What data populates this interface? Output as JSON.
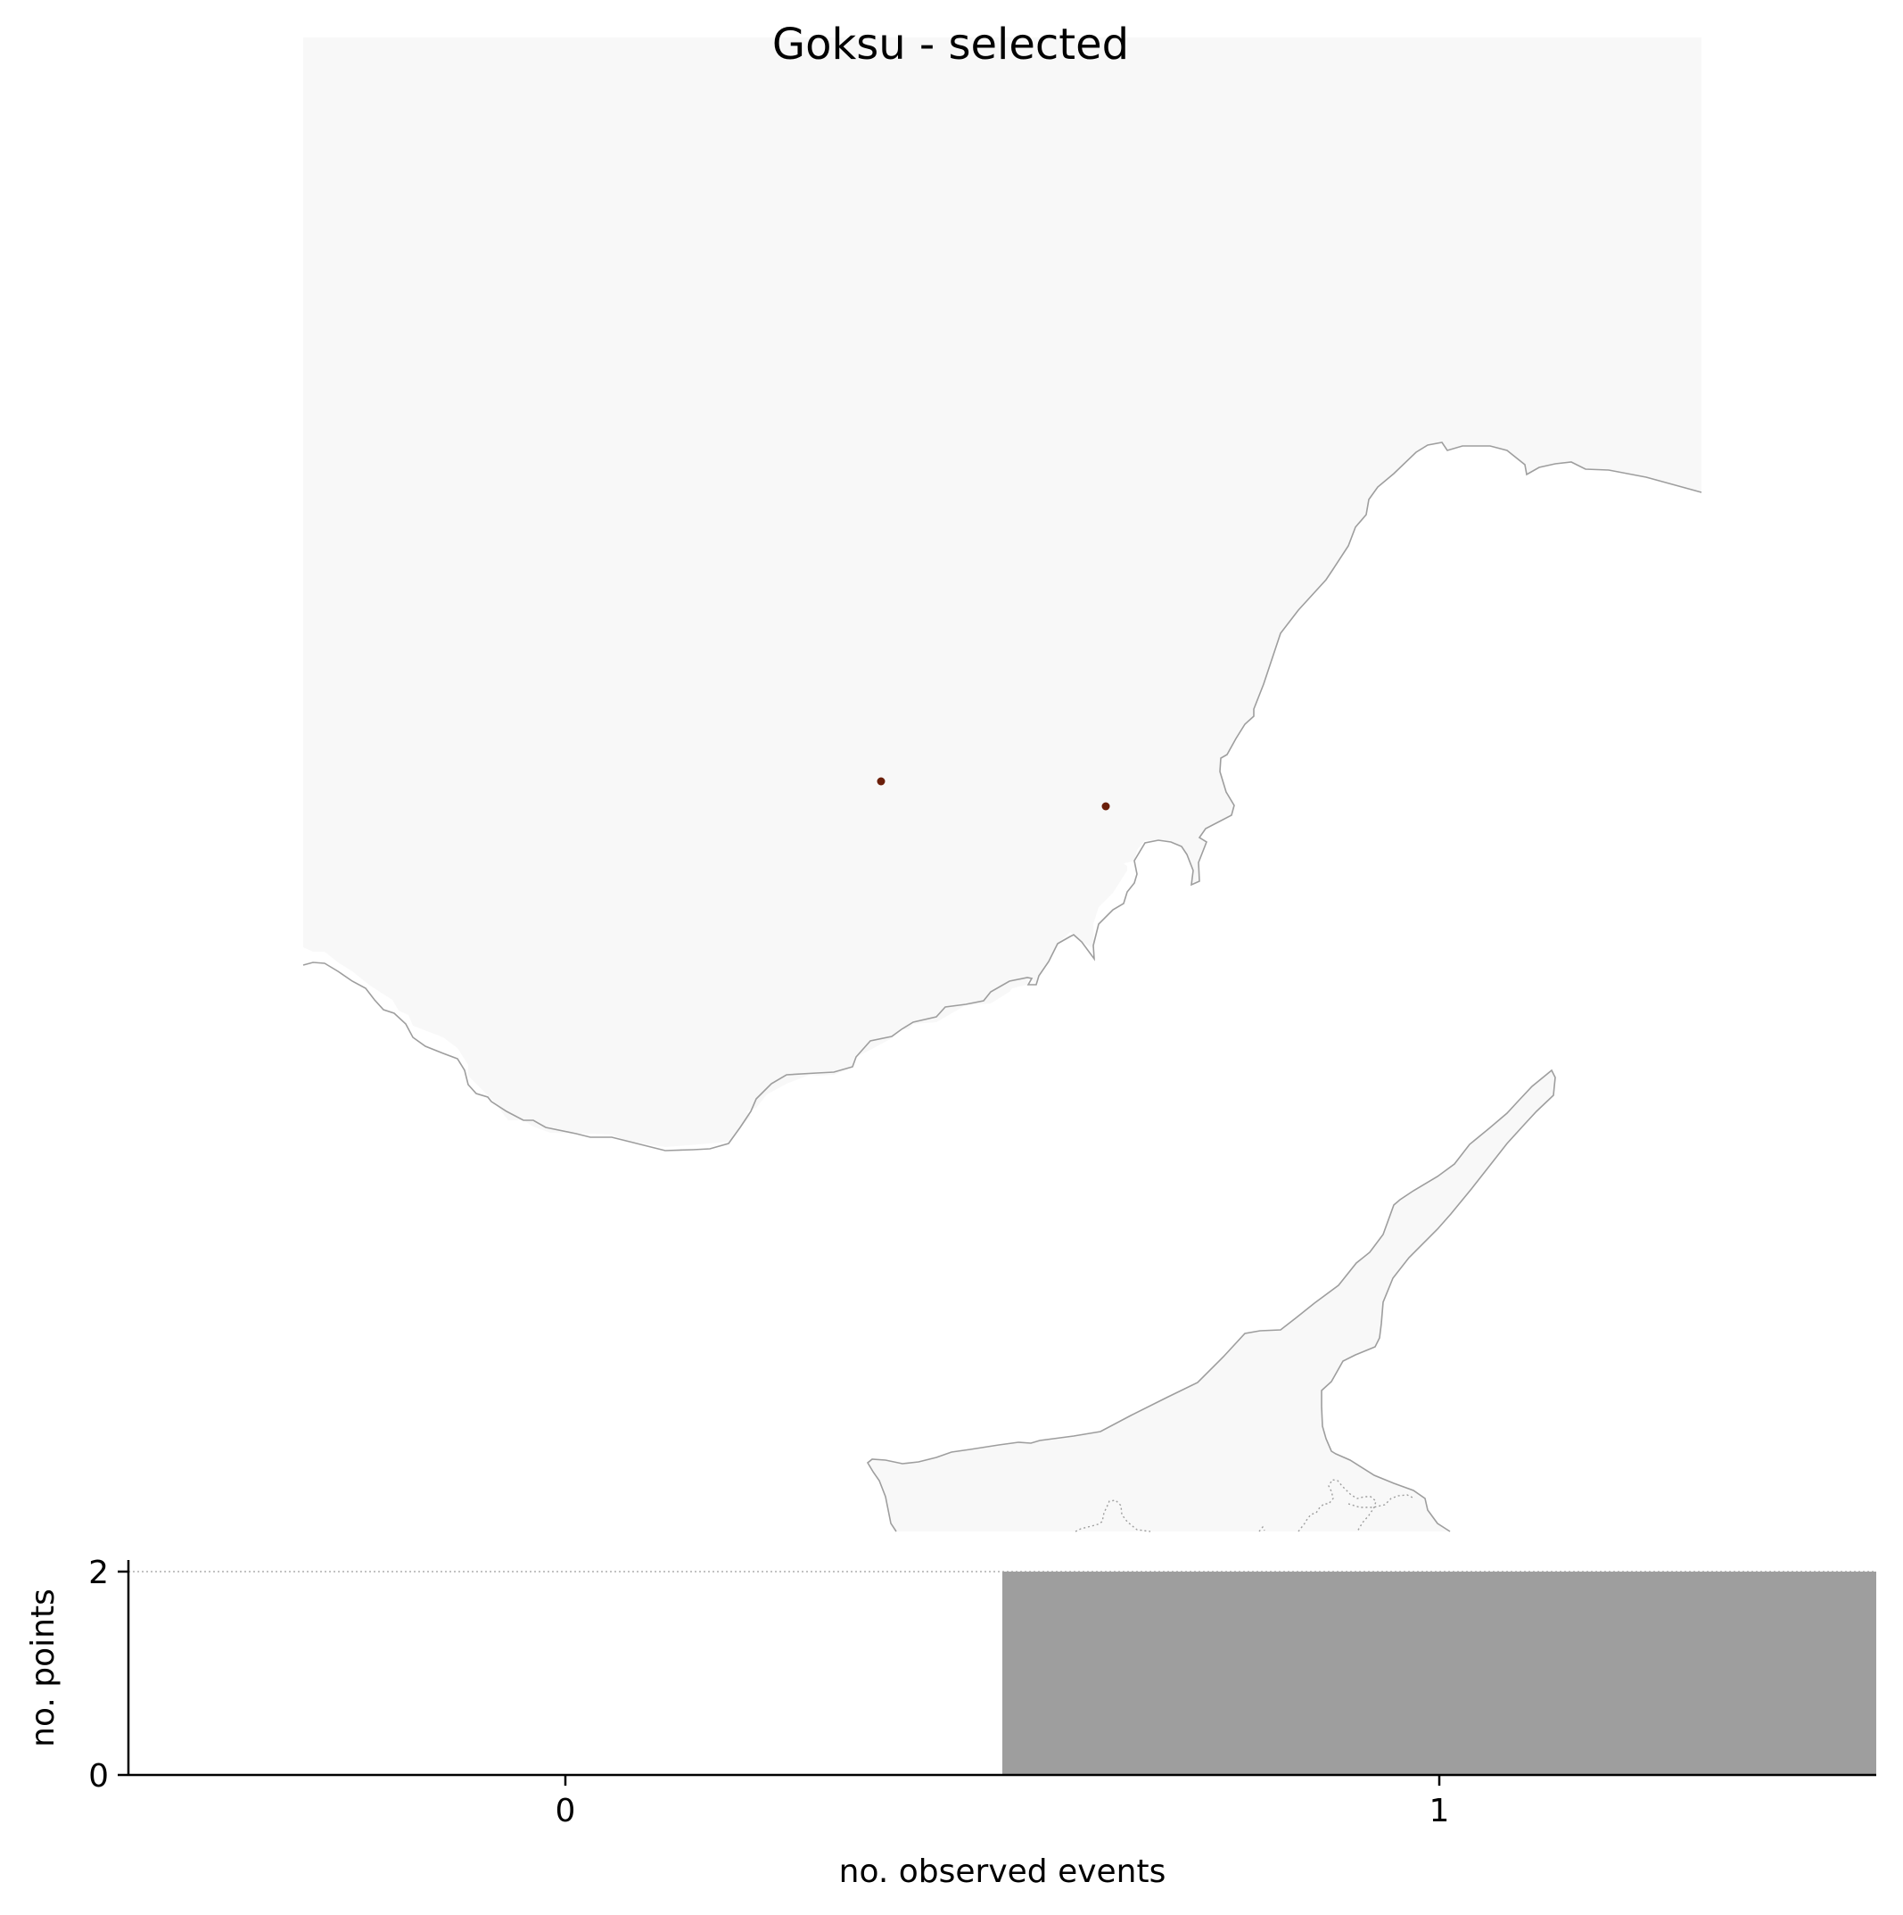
{
  "map": {
    "title": "Goksu - selected",
    "land_color": "#f8f8f8",
    "coast_color": "#9e9e9e",
    "border_style": "dotted",
    "point_color": "#6b1f0a",
    "points": [
      {
        "lon": 33.22,
        "lat": 36.93
      },
      {
        "lon": 33.55,
        "lat": 36.9
      }
    ]
  },
  "chart_data": {
    "type": "bar",
    "categories": [
      "0",
      "1"
    ],
    "values": [
      0,
      2
    ],
    "xlabel": "no. observed events",
    "ylabel": "no. points",
    "yticks": [
      "0",
      "2"
    ],
    "ylim": [
      0,
      2
    ],
    "bar_color": "#9e9e9e",
    "reference_line": 2,
    "reference_line_style": "dotted"
  }
}
